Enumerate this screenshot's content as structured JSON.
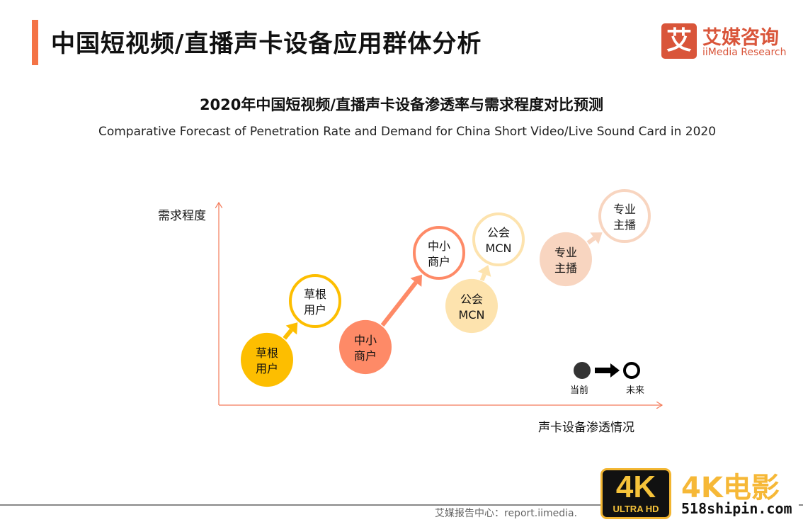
{
  "header": {
    "title": "中国短视频/直播声卡设备应用群体分析",
    "accent_color": "#F47346"
  },
  "logo": {
    "mark": "艾",
    "name_cn": "艾媒咨询",
    "name_en": "iiMedia Research",
    "color": "#D9553A"
  },
  "figure": {
    "title": "2020年中国短视频/直播声卡设备渗透率与需求程度对比预测",
    "subtitle": "Comparative Forecast of Penetration Rate and Demand for China Short Video/Live Sound Card in 2020",
    "y_axis_label": "需求程度",
    "x_axis_label": "声卡设备渗透情况",
    "axis_color": "#F47B5A",
    "groups": [
      {
        "line1": "草根",
        "line2": "用户",
        "color": "#FDBE00"
      },
      {
        "line1": "中小",
        "line2": "商户",
        "color": "#FE8A67"
      },
      {
        "line1": "公会",
        "line2": "MCN",
        "color": "#FDE3AE"
      },
      {
        "line1": "专业",
        "line2": "主播",
        "color": "#F8D5C0"
      }
    ],
    "legend": {
      "current": "当前",
      "future": "未来"
    }
  },
  "footer": {
    "source": "艾媒报告中心：report.iimedia."
  },
  "watermark": {
    "badge_top": "4K",
    "badge_bottom": "ULTRA HD",
    "text": "4K电影",
    "url": "518shipin.com"
  }
}
